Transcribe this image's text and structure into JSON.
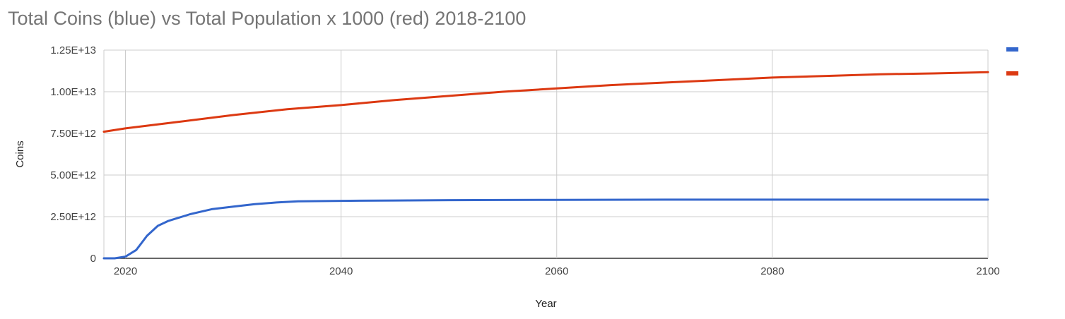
{
  "chart_data": {
    "type": "line",
    "title": "Total Coins (blue) vs Total Population x 1000 (red) 2018-2100",
    "xlabel": "Year",
    "ylabel": "Coins",
    "xlim": [
      2018,
      2100
    ],
    "ylim": [
      0,
      12500000000000
    ],
    "x_ticks": [
      2020,
      2040,
      2060,
      2080,
      2100
    ],
    "y_ticks": [
      0,
      2500000000000,
      5000000000000,
      7500000000000,
      10000000000000,
      12500000000000
    ],
    "y_tick_labels": [
      "0",
      "2.50E+12",
      "5.00E+12",
      "7.50E+12",
      "1.00E+13",
      "1.25E+13"
    ],
    "x_tick_labels": [
      "2020",
      "2040",
      "2060",
      "2080",
      "2100"
    ],
    "grid": true,
    "legend_position": "top-right",
    "series": [
      {
        "color": "#3366cc",
        "points": [
          [
            2018,
            0
          ],
          [
            2019,
            0
          ],
          [
            2020,
            100000000000
          ],
          [
            2021,
            500000000000
          ],
          [
            2022,
            1350000000000
          ],
          [
            2023,
            1950000000000
          ],
          [
            2024,
            2250000000000
          ],
          [
            2025,
            2450000000000
          ],
          [
            2026,
            2650000000000
          ],
          [
            2027,
            2800000000000
          ],
          [
            2028,
            2950000000000
          ],
          [
            2030,
            3100000000000
          ],
          [
            2032,
            3250000000000
          ],
          [
            2034,
            3350000000000
          ],
          [
            2036,
            3420000000000
          ],
          [
            2040,
            3450000000000
          ],
          [
            2045,
            3470000000000
          ],
          [
            2050,
            3490000000000
          ],
          [
            2055,
            3500000000000
          ],
          [
            2060,
            3510000000000
          ],
          [
            2070,
            3520000000000
          ],
          [
            2080,
            3520000000000
          ],
          [
            2090,
            3520000000000
          ],
          [
            2100,
            3520000000000
          ]
        ]
      },
      {
        "color": "#dc3912",
        "points": [
          [
            2018,
            7600000000000
          ],
          [
            2020,
            7800000000000
          ],
          [
            2025,
            8200000000000
          ],
          [
            2030,
            8600000000000
          ],
          [
            2035,
            8950000000000
          ],
          [
            2040,
            9200000000000
          ],
          [
            2045,
            9500000000000
          ],
          [
            2050,
            9750000000000
          ],
          [
            2055,
            10000000000000
          ],
          [
            2060,
            10200000000000
          ],
          [
            2065,
            10400000000000
          ],
          [
            2070,
            10550000000000
          ],
          [
            2075,
            10700000000000
          ],
          [
            2080,
            10850000000000
          ],
          [
            2085,
            10950000000000
          ],
          [
            2090,
            11050000000000
          ],
          [
            2095,
            11100000000000
          ],
          [
            2100,
            11180000000000
          ]
        ]
      }
    ]
  }
}
